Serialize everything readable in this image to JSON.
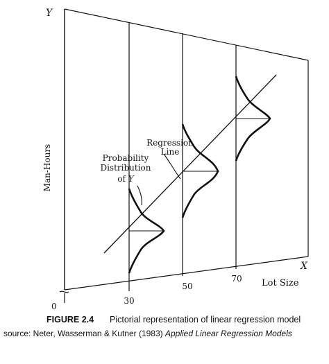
{
  "axes": {
    "y_axis_letter": "Y",
    "x_axis_letter": "X",
    "y_axis_label": "Man-Hours",
    "x_axis_label": "Lot Size",
    "origin_label": "0",
    "x_ticks": [
      "30",
      "50",
      "70"
    ]
  },
  "annotations": {
    "regression_line_label_1": "Regression",
    "regression_line_label_2": "Line",
    "prob_dist_label_1": "Probability",
    "prob_dist_label_2": "Distribution",
    "prob_dist_label_3_prefix": "of ",
    "prob_dist_label_3_var": "Y"
  },
  "caption": {
    "figure_number": "FIGURE 2.4",
    "figure_title": "Pictorial representation of linear regression model",
    "source_prefix": "source:  Neter, Wasserman & Kutner (1983) ",
    "source_title": "Applied Linear Regression Models"
  }
}
